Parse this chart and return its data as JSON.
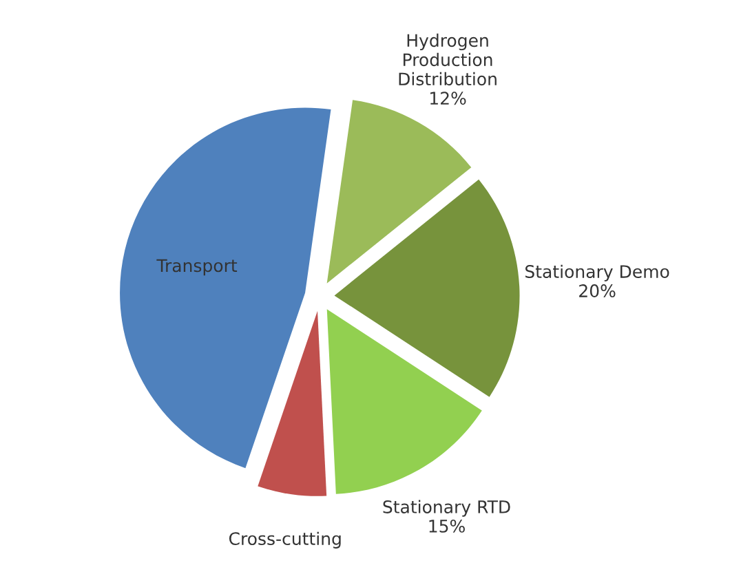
{
  "chart_data": {
    "type": "pie",
    "categories": [
      "Hydrogen\nProduction\nDistribution",
      "Stationary Demo",
      "Stationary RTD",
      "Cross-cutting",
      "Transport"
    ],
    "values": [
      12,
      20,
      15,
      6,
      47
    ],
    "value_labels": [
      "12%",
      "20%",
      "15%",
      null,
      null
    ],
    "colors": [
      "#9bbb59",
      "#77933c",
      "#92d050",
      "#c0504d",
      "#4f81bd"
    ]
  }
}
